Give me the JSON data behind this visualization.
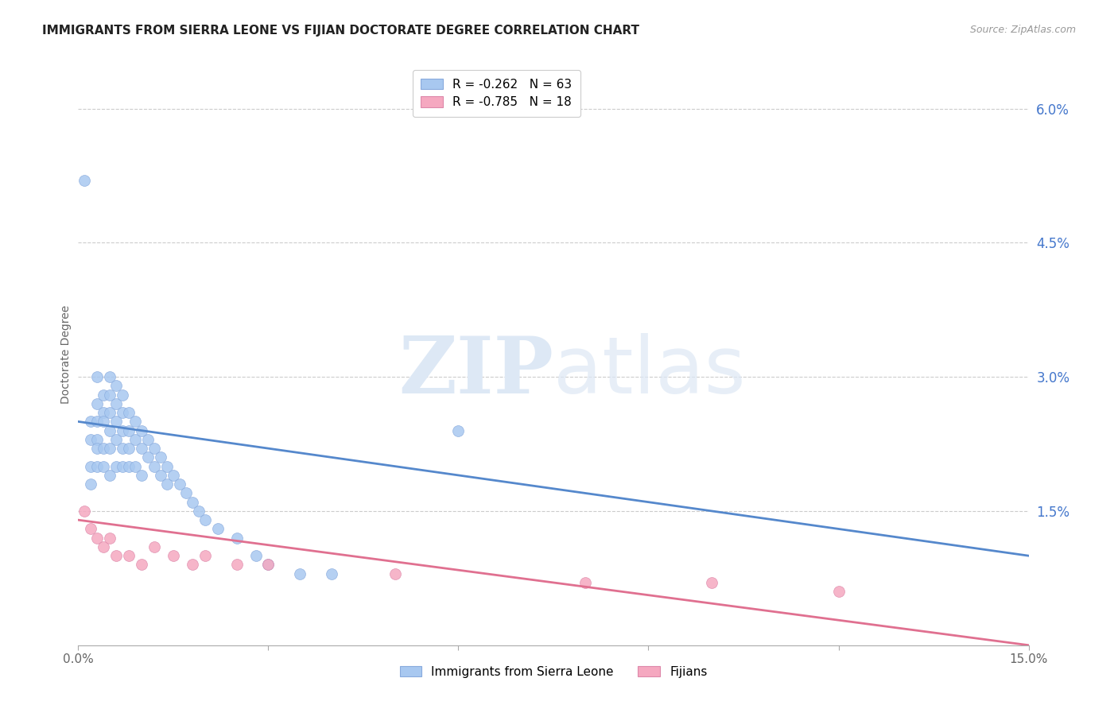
{
  "title": "IMMIGRANTS FROM SIERRA LEONE VS FIJIAN DOCTORATE DEGREE CORRELATION CHART",
  "source": "Source: ZipAtlas.com",
  "ylabel": "Doctorate Degree",
  "xlim": [
    0.0,
    0.15
  ],
  "ylim": [
    0.0,
    0.065
  ],
  "xtick_positions": [
    0.0,
    0.03,
    0.06,
    0.09,
    0.12,
    0.15
  ],
  "xtick_labels": [
    "0.0%",
    "",
    "",
    "",
    "",
    "15.0%"
  ],
  "ytick_vals_right": [
    0.06,
    0.045,
    0.03,
    0.015
  ],
  "ytick_labels_right": [
    "6.0%",
    "4.5%",
    "3.0%",
    "1.5%"
  ],
  "grid_color": "#cccccc",
  "background_color": "#ffffff",
  "blue_color": "#a8c8f0",
  "pink_color": "#f5a8c0",
  "blue_line_color": "#5588cc",
  "pink_line_color": "#e07090",
  "legend_title_blue": "Immigrants from Sierra Leone",
  "legend_title_pink": "Fijians",
  "sl_x": [
    0.001,
    0.002,
    0.002,
    0.002,
    0.002,
    0.003,
    0.003,
    0.003,
    0.003,
    0.003,
    0.003,
    0.004,
    0.004,
    0.004,
    0.004,
    0.004,
    0.005,
    0.005,
    0.005,
    0.005,
    0.005,
    0.005,
    0.006,
    0.006,
    0.006,
    0.006,
    0.006,
    0.007,
    0.007,
    0.007,
    0.007,
    0.007,
    0.008,
    0.008,
    0.008,
    0.008,
    0.009,
    0.009,
    0.009,
    0.01,
    0.01,
    0.01,
    0.011,
    0.011,
    0.012,
    0.012,
    0.013,
    0.013,
    0.014,
    0.014,
    0.015,
    0.016,
    0.017,
    0.018,
    0.019,
    0.02,
    0.022,
    0.025,
    0.028,
    0.03,
    0.035,
    0.04,
    0.06
  ],
  "sl_y": [
    0.052,
    0.025,
    0.023,
    0.02,
    0.018,
    0.03,
    0.027,
    0.025,
    0.023,
    0.022,
    0.02,
    0.028,
    0.026,
    0.025,
    0.022,
    0.02,
    0.03,
    0.028,
    0.026,
    0.024,
    0.022,
    0.019,
    0.029,
    0.027,
    0.025,
    0.023,
    0.02,
    0.028,
    0.026,
    0.024,
    0.022,
    0.02,
    0.026,
    0.024,
    0.022,
    0.02,
    0.025,
    0.023,
    0.02,
    0.024,
    0.022,
    0.019,
    0.023,
    0.021,
    0.022,
    0.02,
    0.021,
    0.019,
    0.02,
    0.018,
    0.019,
    0.018,
    0.017,
    0.016,
    0.015,
    0.014,
    0.013,
    0.012,
    0.01,
    0.009,
    0.008,
    0.008,
    0.024
  ],
  "fj_x": [
    0.001,
    0.002,
    0.003,
    0.004,
    0.005,
    0.006,
    0.008,
    0.01,
    0.012,
    0.015,
    0.018,
    0.02,
    0.025,
    0.03,
    0.05,
    0.08,
    0.1,
    0.12
  ],
  "fj_y": [
    0.015,
    0.013,
    0.012,
    0.011,
    0.012,
    0.01,
    0.01,
    0.009,
    0.011,
    0.01,
    0.009,
    0.01,
    0.009,
    0.009,
    0.008,
    0.007,
    0.007,
    0.006
  ],
  "sl_line_x": [
    0.0,
    0.15
  ],
  "sl_line_y": [
    0.025,
    0.01
  ],
  "fj_line_x": [
    0.0,
    0.15
  ],
  "fj_line_y": [
    0.014,
    0.0
  ]
}
